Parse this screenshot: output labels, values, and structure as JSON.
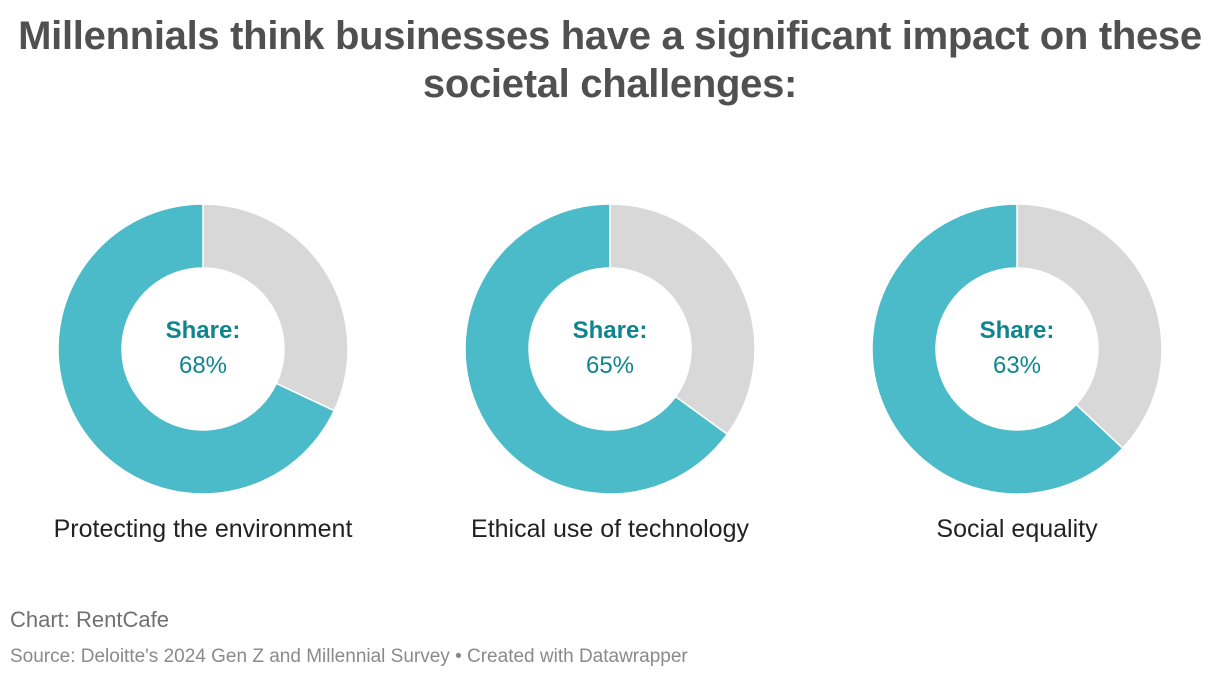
{
  "chart_data": {
    "type": "pie",
    "style": "donut",
    "title": "Millennials think businesses have a significant impact on these societal challenges:",
    "center_label": "Share:",
    "colors": {
      "share": "#4bbbc9",
      "rest": "#d8d8d8"
    },
    "charts": [
      {
        "category": "Protecting the environment",
        "value": 68,
        "display": "68%"
      },
      {
        "category": "Ethical use of technology",
        "value": 65,
        "display": "65%"
      },
      {
        "category": "Social equality",
        "value": 63,
        "display": "63%"
      }
    ]
  },
  "footer": {
    "credit": "Chart: RentCafe",
    "source": "Source: Deloitte's 2024 Gen Z and Millennial Survey • Created with Datawrapper"
  }
}
